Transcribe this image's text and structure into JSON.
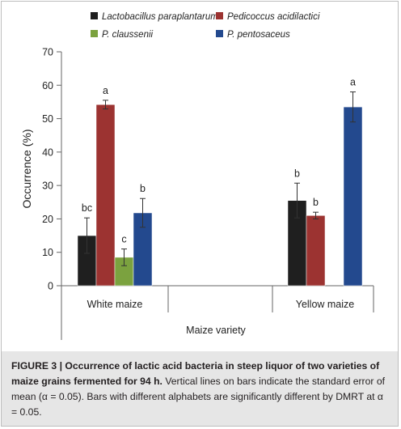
{
  "chart_data": {
    "type": "bar",
    "categories": [
      "White maize",
      "Yellow maize"
    ],
    "xlabel": "Maize variety",
    "ylabel": "Occurrence (%)",
    "ylim": [
      0,
      70
    ],
    "yticks": [
      0,
      10,
      20,
      30,
      40,
      50,
      60,
      70
    ],
    "grid": false,
    "legend_position": "top",
    "series": [
      {
        "name": "Lactobacillus paraplantarum",
        "color": "#1f1f1f",
        "values": [
          15.0,
          25.5
        ],
        "errors": [
          5.3,
          5.2
        ],
        "letters": [
          "bc",
          "b"
        ]
      },
      {
        "name": "Pedicoccus acidilactici",
        "color": "#9c3331",
        "values": [
          54.2,
          21.0
        ],
        "errors": [
          1.3,
          1.0
        ],
        "letters": [
          "a",
          "b"
        ]
      },
      {
        "name": "P. claussenii",
        "color": "#7ba23f",
        "values": [
          8.5,
          null
        ],
        "errors": [
          2.5,
          null
        ],
        "letters": [
          "c",
          null
        ]
      },
      {
        "name": "P. pentosaceus",
        "color": "#23498e",
        "values": [
          21.8,
          53.5
        ],
        "errors": [
          4.3,
          4.5
        ],
        "letters": [
          "b",
          "a"
        ]
      }
    ]
  },
  "caption": {
    "label": "FIGURE 3 | Occurrence of lactic acid bacteria in steep liquor of two varieties of maize grains fermented for 94 h.",
    "text": " Vertical lines on bars indicate the standard error of mean (α = 0.05). Bars with different alphabets are significantly different by DMRT at α = 0.05."
  }
}
